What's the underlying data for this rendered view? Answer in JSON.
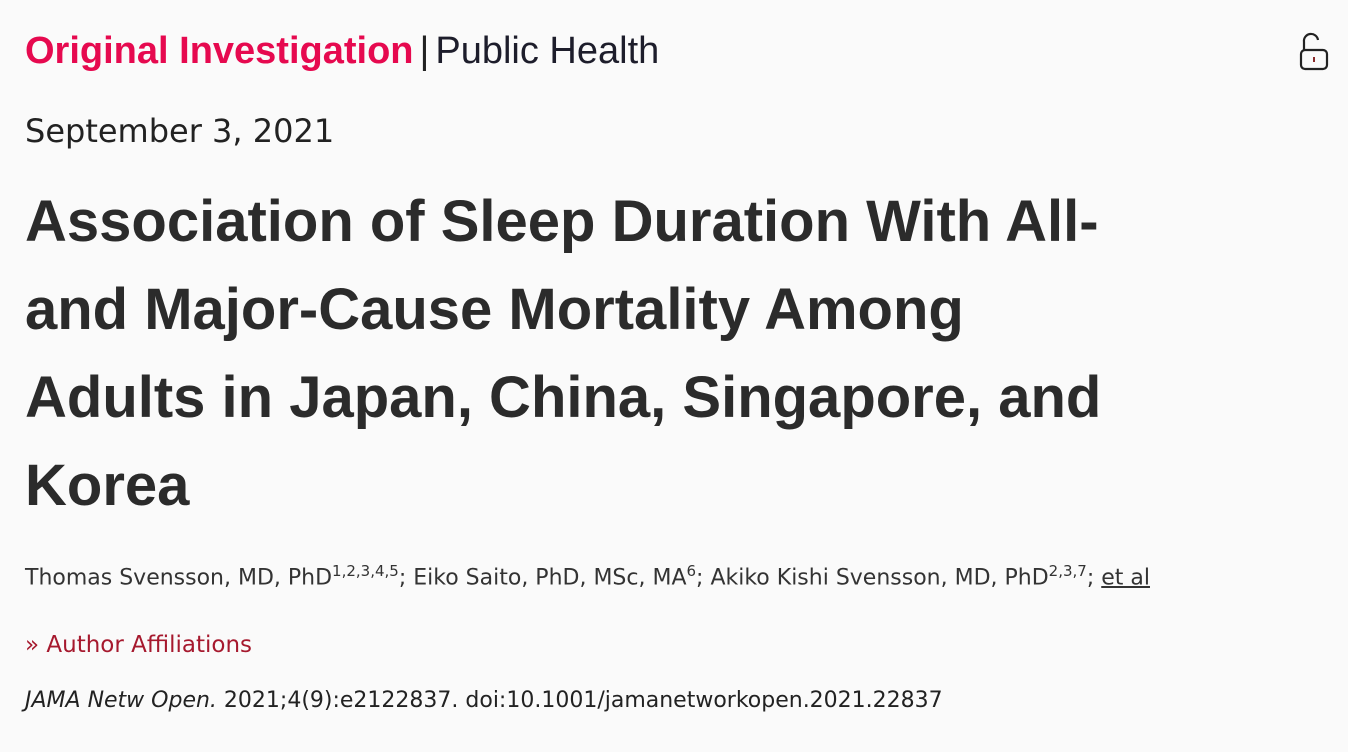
{
  "header": {
    "article_type": "Original Investigation",
    "separator": "|",
    "category": "Public Health",
    "lock_icon": "open-lock-icon"
  },
  "date": "September 3, 2021",
  "title_lines": [
    "Association of Sleep Duration With All-",
    "and Major-Cause Mortality Among",
    "Adults in Japan, China, Singapore, and",
    "Korea"
  ],
  "authors": [
    {
      "name": "Thomas Svensson, MD, PhD",
      "sup": "1,2,3,4,5"
    },
    {
      "name": "Eiko Saito, PhD, MSc, MA",
      "sup": "6"
    },
    {
      "name": "Akiko Kishi Svensson, MD, PhD",
      "sup": "2,3,7"
    }
  ],
  "et_al": "et al",
  "affiliations_label": "Author Affiliations",
  "affiliations_icon": "double-chevron-right-icon",
  "citation": {
    "journal": "JAMA Netw Open.",
    "details": " 2021;4(9):e2122837. doi:10.1001/jamanetworkopen.2021.22837"
  },
  "colors": {
    "accent": "#e6094f",
    "link": "#a6192e"
  }
}
